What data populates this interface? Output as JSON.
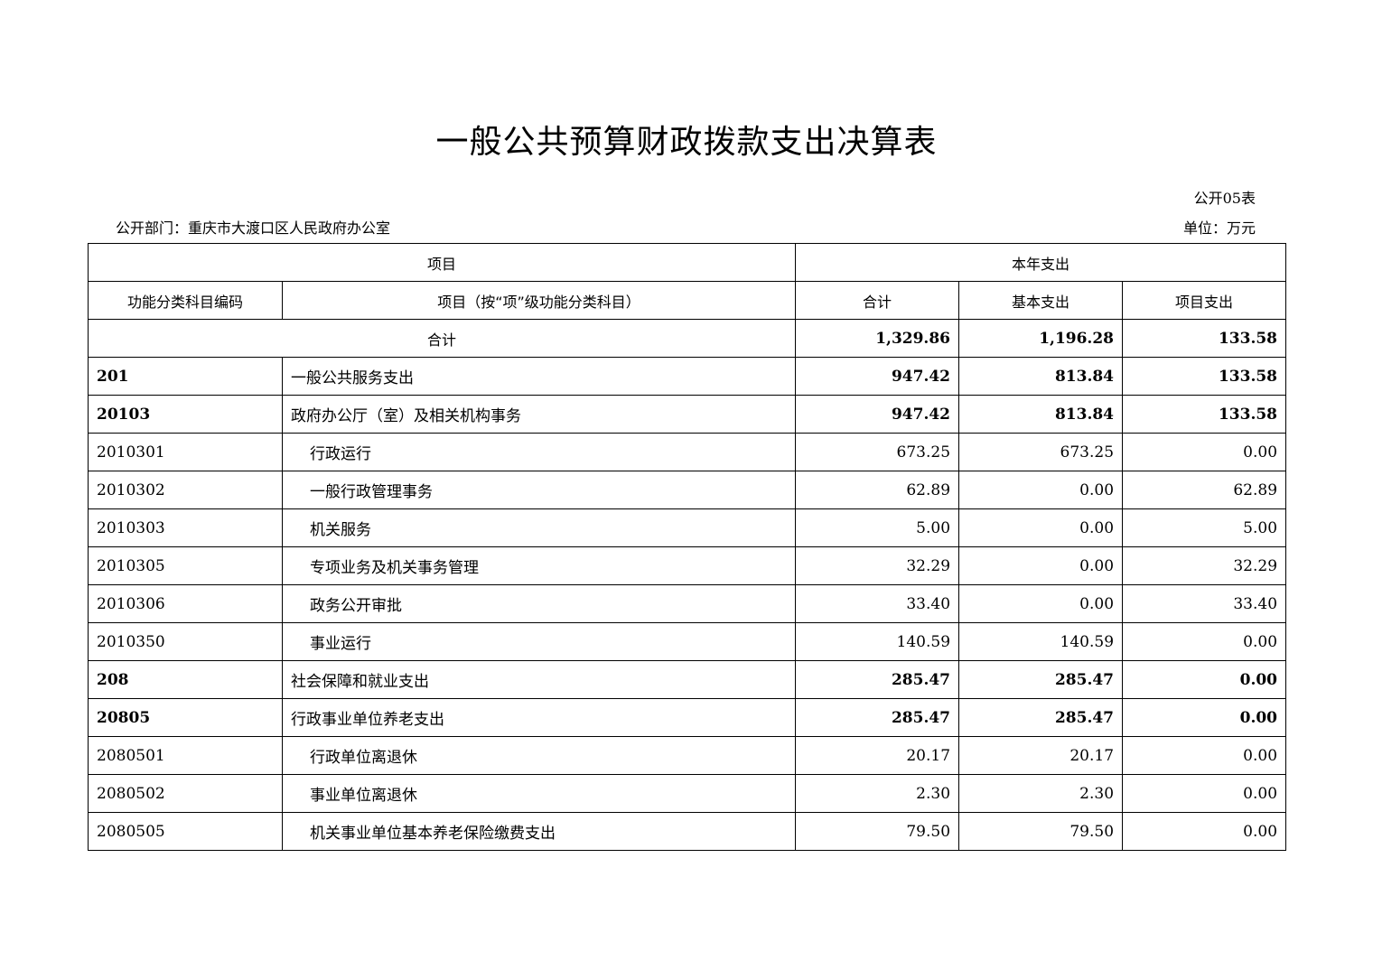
{
  "title": "一般公共预算财政拨款支出决算表",
  "form_no": "公开05表",
  "department": "公开部门：重庆市大渡口区人民政府办公室",
  "unit": "单位：万元",
  "header": {
    "project": "项目",
    "current_year": "本年支出",
    "code": "功能分类科目编码",
    "item": "项目（按“项”级功能分类科目）",
    "total": "合计",
    "basic": "基本支出",
    "project_exp": "项目支出"
  },
  "total_row": {
    "label": "合计",
    "total": "1,329.86",
    "basic": "1,196.28",
    "project": "133.58"
  },
  "rows": [
    {
      "code": "201",
      "name": "一般公共服务支出",
      "total": "947.42",
      "basic": "813.84",
      "project": "133.58",
      "bold": true
    },
    {
      "code": "20103",
      "name": "政府办公厅（室）及相关机构事务",
      "total": "947.42",
      "basic": "813.84",
      "project": "133.58",
      "bold": true
    },
    {
      "code": "2010301",
      "name": "行政运行",
      "total": "673.25",
      "basic": "673.25",
      "project": "0.00"
    },
    {
      "code": "2010302",
      "name": "一般行政管理事务",
      "total": "62.89",
      "basic": "0.00",
      "project": "62.89"
    },
    {
      "code": "2010303",
      "name": "机关服务",
      "total": "5.00",
      "basic": "0.00",
      "project": "5.00"
    },
    {
      "code": "2010305",
      "name": "专项业务及机关事务管理",
      "total": "32.29",
      "basic": "0.00",
      "project": "32.29"
    },
    {
      "code": "2010306",
      "name": "政务公开审批",
      "total": "33.40",
      "basic": "0.00",
      "project": "33.40"
    },
    {
      "code": "2010350",
      "name": "事业运行",
      "total": "140.59",
      "basic": "140.59",
      "project": "0.00"
    },
    {
      "code": "208",
      "name": "社会保障和就业支出",
      "total": "285.47",
      "basic": "285.47",
      "project": "0.00",
      "bold": true
    },
    {
      "code": "20805",
      "name": "行政事业单位养老支出",
      "total": "285.47",
      "basic": "285.47",
      "project": "0.00",
      "bold": true
    },
    {
      "code": "2080501",
      "name": "行政单位离退休",
      "total": "20.17",
      "basic": "20.17",
      "project": "0.00"
    },
    {
      "code": "2080502",
      "name": "事业单位离退休",
      "total": "2.30",
      "basic": "2.30",
      "project": "0.00"
    },
    {
      "code": "2080505",
      "name": "机关事业单位基本养老保险缴费支出",
      "total": "79.50",
      "basic": "79.50",
      "project": "0.00"
    }
  ]
}
